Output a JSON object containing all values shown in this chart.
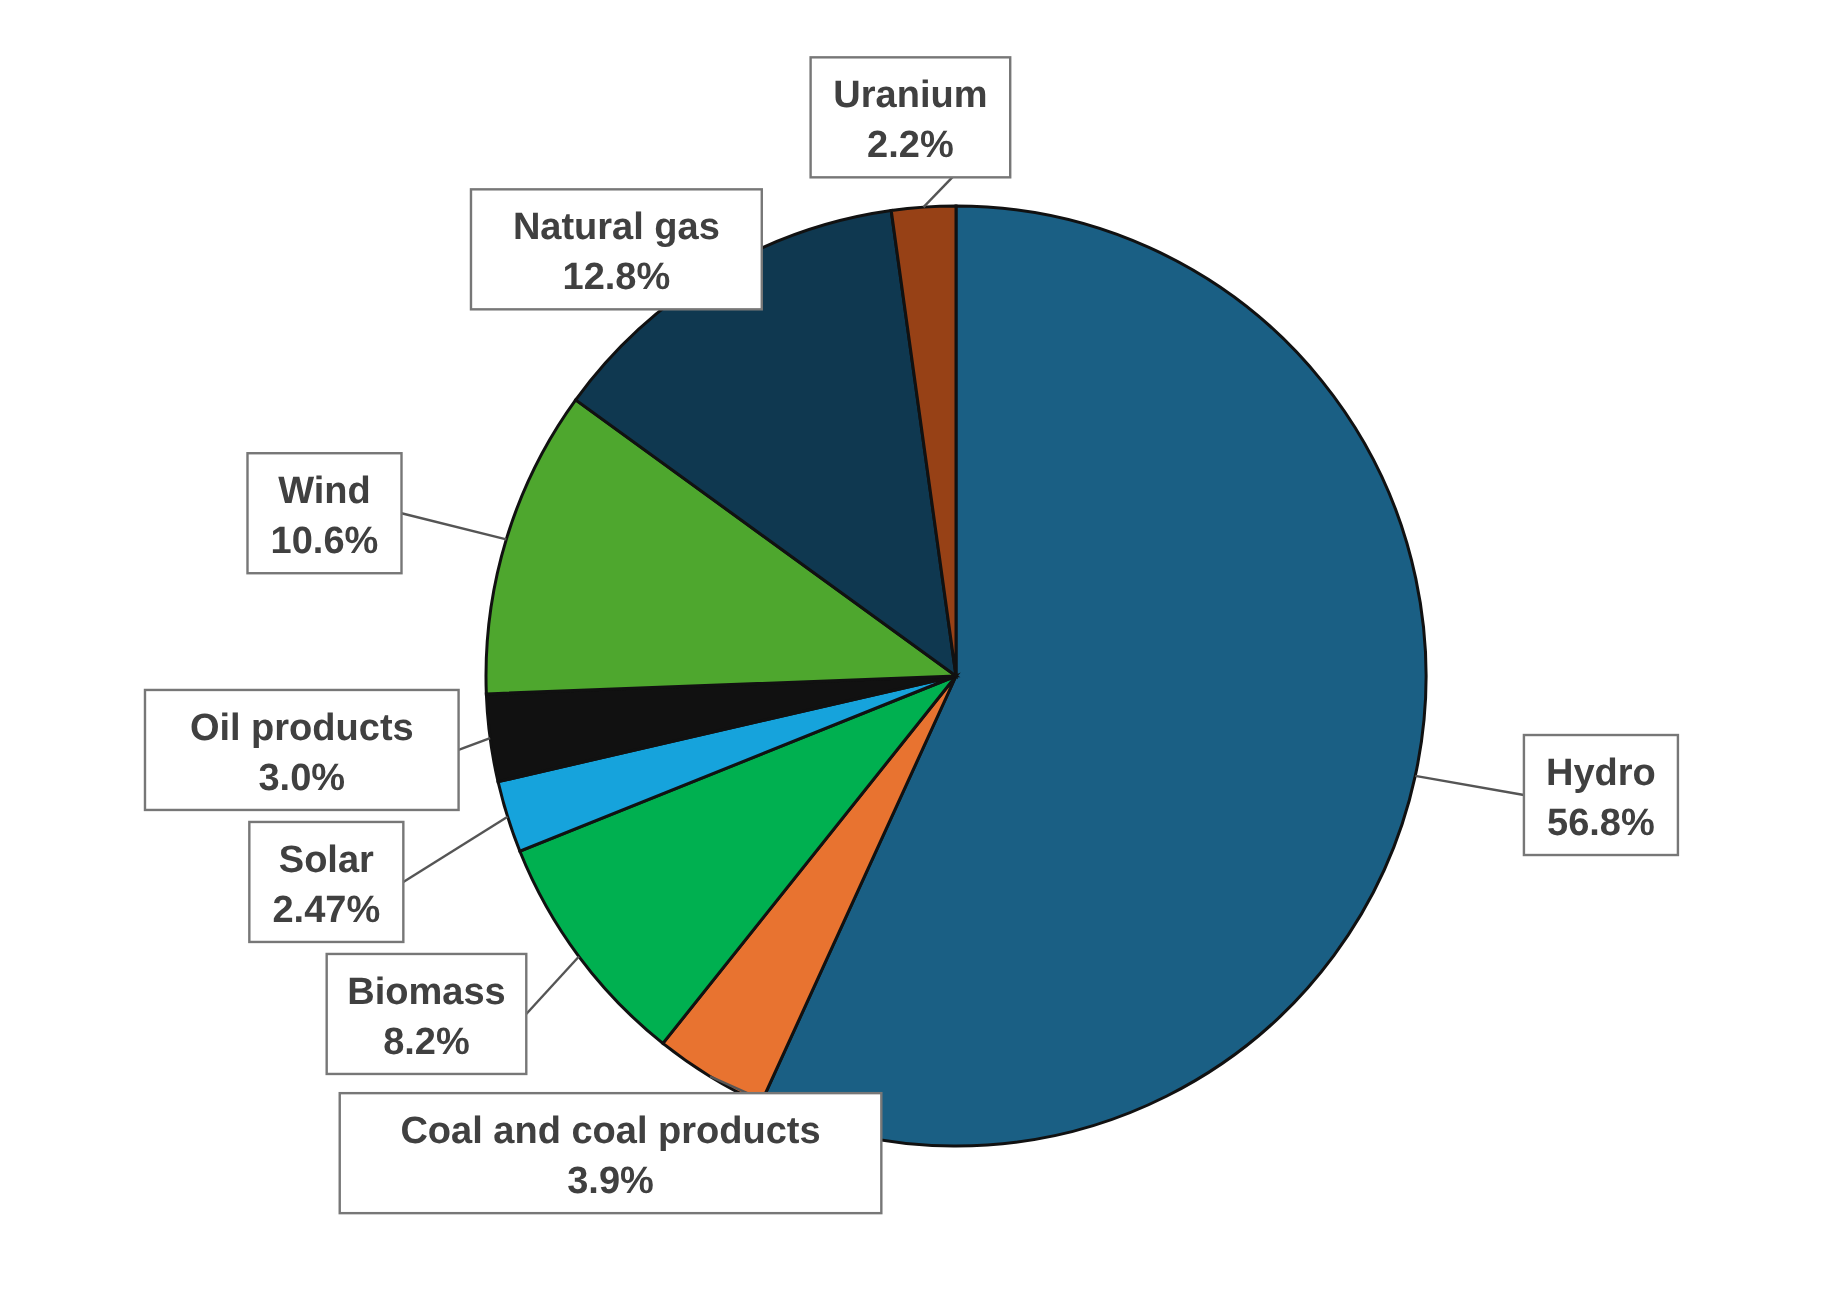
{
  "chart_data": {
    "type": "pie",
    "categories": [
      "Hydro",
      "Coal and coal products",
      "Biomass",
      "Solar",
      "Oil products",
      "Wind",
      "Natural gas",
      "Uranium"
    ],
    "values": [
      56.8,
      3.9,
      8.2,
      2.47,
      3.0,
      10.6,
      12.8,
      2.2
    ],
    "colors": [
      "#1a5f84",
      "#e87330",
      "#00b050",
      "#16a3dc",
      "#111111",
      "#4ea72e",
      "#0f3850",
      "#974116"
    ],
    "value_labels": [
      "56.8%",
      "3.9%",
      "8.2%",
      "2.47%",
      "3.0%",
      "10.6%",
      "12.8%",
      "2.2%"
    ]
  }
}
